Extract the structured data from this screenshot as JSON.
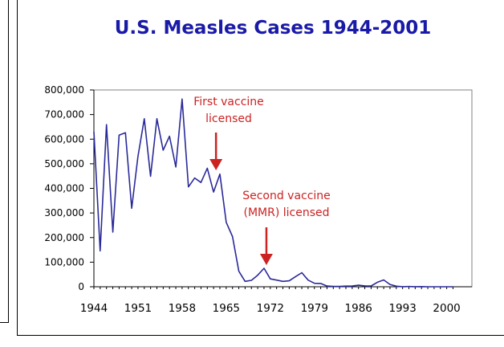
{
  "chart_data": {
    "type": "line",
    "title": "U.S. Measles Cases 1944-2001",
    "xlabel": "",
    "ylabel": "",
    "xlim": [
      1944,
      2001
    ],
    "ylim": [
      0,
      800000
    ],
    "grid": false,
    "y_ticks": [
      0,
      100000,
      200000,
      300000,
      400000,
      500000,
      600000,
      700000,
      800000
    ],
    "y_tick_labels": [
      "0",
      "100,000",
      "200,000",
      "300,000",
      "400,000",
      "500,000",
      "600,000",
      "700,000",
      "800,000"
    ],
    "x_ticks": [
      1944,
      1951,
      1958,
      1965,
      1972,
      1979,
      1986,
      1993,
      2000
    ],
    "x_tick_labels": [
      "1944",
      "1951",
      "1958",
      "1965",
      "1972",
      "1979",
      "1986",
      "1993",
      "2000"
    ],
    "series": [
      {
        "color": "#2a2a9a",
        "x": [
          1944,
          1945,
          1946,
          1947,
          1948,
          1949,
          1950,
          1951,
          1952,
          1953,
          1954,
          1955,
          1956,
          1957,
          1958,
          1959,
          1960,
          1961,
          1962,
          1963,
          1964,
          1965,
          1966,
          1967,
          1968,
          1969,
          1970,
          1971,
          1972,
          1973,
          1974,
          1975,
          1976,
          1977,
          1978,
          1979,
          1980,
          1981,
          1982,
          1983,
          1984,
          1985,
          1986,
          1987,
          1988,
          1989,
          1990,
          1991,
          1992,
          1993,
          1994,
          1995,
          1996,
          1997,
          1998,
          1999,
          2000,
          2001
        ],
        "y": [
          630000,
          146000,
          659000,
          222000,
          616000,
          626000,
          319000,
          530000,
          683000,
          449000,
          683000,
          555000,
          612000,
          487000,
          763000,
          406000,
          442000,
          424000,
          482000,
          385000,
          458000,
          262000,
          204000,
          63000,
          22000,
          26000,
          47000,
          75000,
          32000,
          27000,
          22000,
          24000,
          41000,
          57000,
          27000,
          14000,
          13500,
          3000,
          1700,
          1500,
          2600,
          2800,
          6300,
          3700,
          3400,
          18200,
          27800,
          9600,
          2200,
          312,
          963,
          309,
          508,
          138,
          100,
          100,
          86,
          116
        ]
      }
    ],
    "annotations": [
      {
        "text_lines": [
          "First vaccine",
          "licensed"
        ],
        "x": 1963,
        "y": 385000,
        "color": "#cc2222"
      },
      {
        "text_lines": [
          "Second vaccine",
          "(MMR) licensed"
        ],
        "x": 1971,
        "y": 75000,
        "color": "#cc2222"
      }
    ],
    "colors": {
      "title": "#1a1aa8",
      "line": "#2a2a9a",
      "annotation": "#cc2222",
      "plot_background": "#ffffff"
    }
  }
}
